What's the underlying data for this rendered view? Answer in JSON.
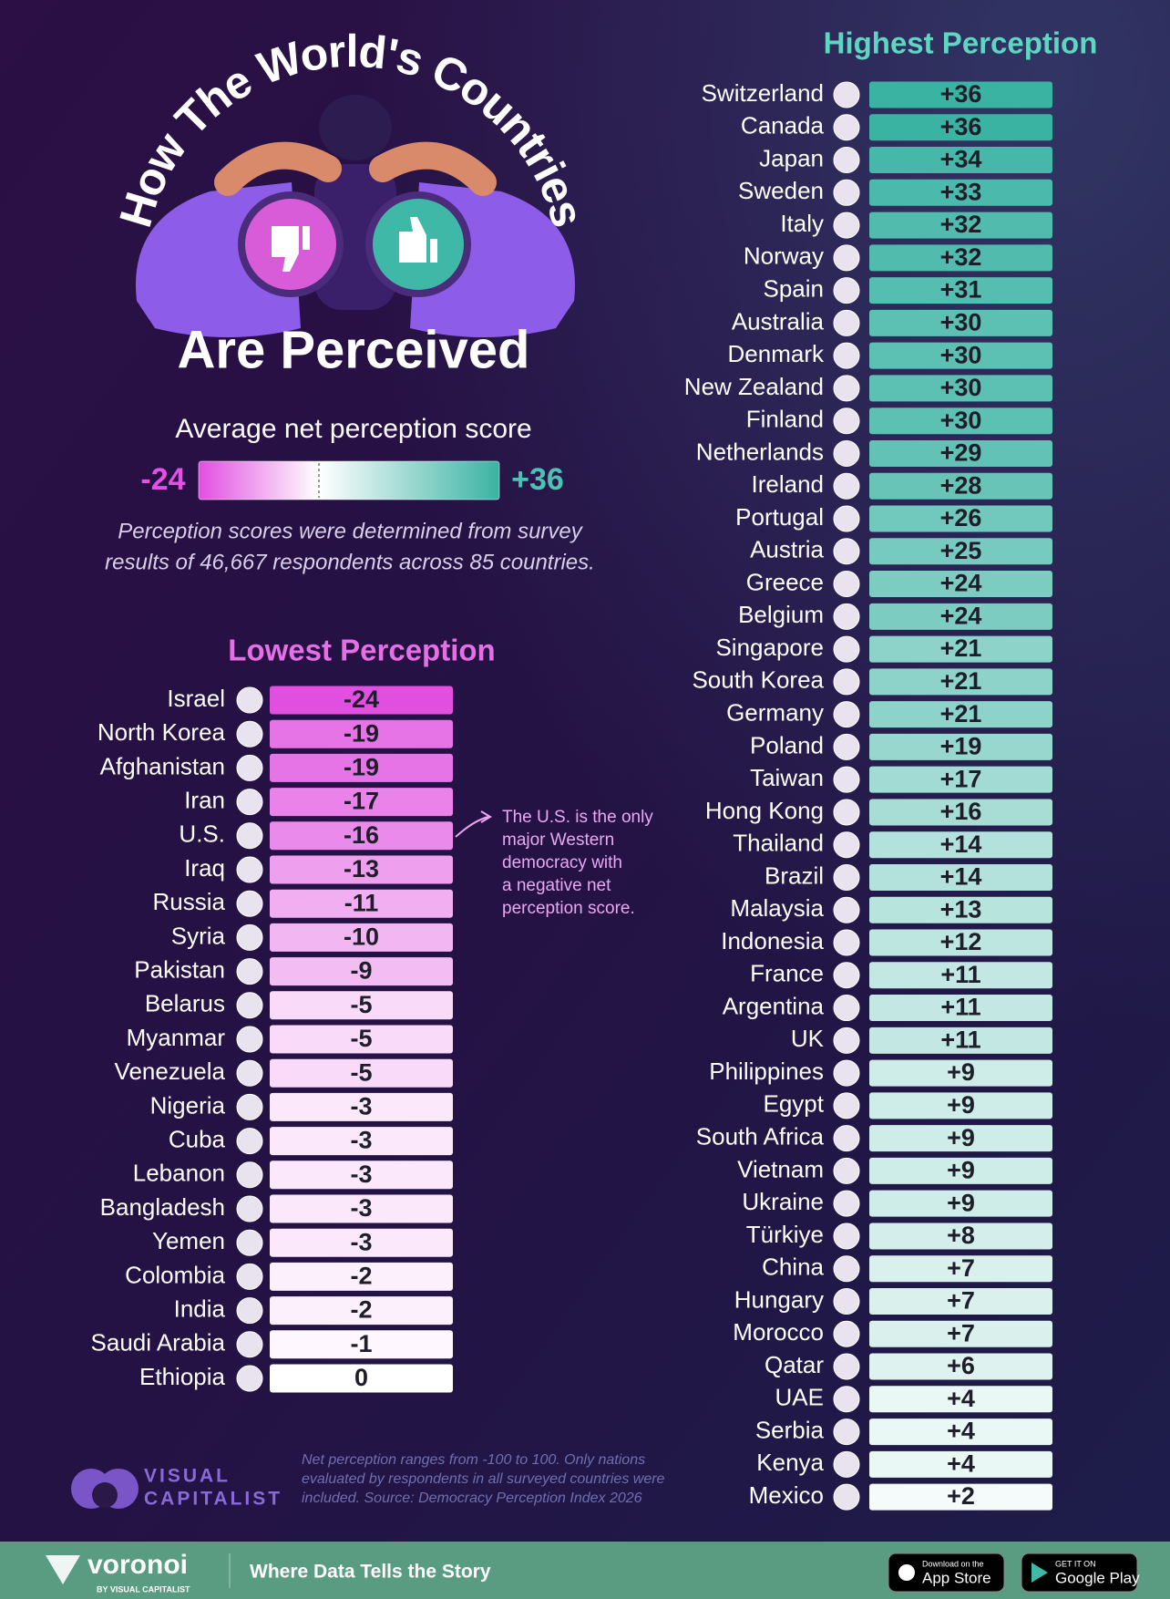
{
  "title_top": "How The World's Countries",
  "title_bottom": "Are Perceived",
  "legend": {
    "title": "Average net perception score",
    "min": -24,
    "max": {
      "value": 36,
      "label": "+36"
    },
    "colors": [
      "#e04fe0",
      "#ffffff",
      "#3bb3a3"
    ]
  },
  "note": [
    "Perception scores were determined from survey",
    "results of 46,667 respondents across 85 countries."
  ],
  "annotation": [
    "The U.S. is the only",
    "major Western",
    "democracy with",
    "a negative net",
    "perception score."
  ],
  "chart_data": [
    {
      "type": "bar",
      "title": "Lowest Perception",
      "color": "#e66fe6",
      "categories": [
        "Israel",
        "North Korea",
        "Afghanistan",
        "Iran",
        "U.S.",
        "Iraq",
        "Russia",
        "Syria",
        "Pakistan",
        "Belarus",
        "Myanmar",
        "Venezuela",
        "Nigeria",
        "Cuba",
        "Lebanon",
        "Bangladesh",
        "Yemen",
        "Colombia",
        "India",
        "Saudi Arabia",
        "Ethiopia"
      ],
      "values": [
        -24,
        -19,
        -19,
        -17,
        -16,
        -13,
        -11,
        -10,
        -9,
        -5,
        -5,
        -5,
        -3,
        -3,
        -3,
        -3,
        -3,
        -2,
        -2,
        -1,
        0
      ]
    },
    {
      "type": "bar",
      "title": "Highest Perception",
      "color": "#5fd6c2",
      "categories": [
        "Switzerland",
        "Canada",
        "Japan",
        "Sweden",
        "Italy",
        "Norway",
        "Spain",
        "Australia",
        "Denmark",
        "New Zealand",
        "Finland",
        "Netherlands",
        "Ireland",
        "Portugal",
        "Austria",
        "Greece",
        "Belgium",
        "Singapore",
        "South Korea",
        "Germany",
        "Poland",
        "Taiwan",
        "Hong Kong",
        "Thailand",
        "Brazil",
        "Malaysia",
        "Indonesia",
        "France",
        "Argentina",
        "UK",
        "Philippines",
        "Egypt",
        "South Africa",
        "Vietnam",
        "Ukraine",
        "Türkiye",
        "China",
        "Hungary",
        "Morocco",
        "Qatar",
        "UAE",
        "Serbia",
        "Kenya",
        "Mexico"
      ],
      "values": [
        36,
        36,
        34,
        33,
        32,
        32,
        31,
        30,
        30,
        30,
        30,
        29,
        28,
        26,
        25,
        24,
        24,
        21,
        21,
        21,
        19,
        17,
        16,
        14,
        14,
        13,
        12,
        11,
        11,
        11,
        9,
        9,
        9,
        9,
        9,
        8,
        7,
        7,
        7,
        6,
        4,
        4,
        4,
        2
      ],
      "value_labels": [
        "+36",
        "+36",
        "+34",
        "+33",
        "+32",
        "+32",
        "+31",
        "+30",
        "+30",
        "+30",
        "+30",
        "+29",
        "+28",
        "+26",
        "+25",
        "+24",
        "+24",
        "+21",
        "+21",
        "+21",
        "+19",
        "+17",
        "+16",
        "+14",
        "+14",
        "+13",
        "+12",
        "+11",
        "+11",
        "+11",
        "+9",
        "+9",
        "+9",
        "+9",
        "+9",
        "+8",
        "+7",
        "+7",
        "+7",
        "+6",
        "+4",
        "+4",
        "+4",
        "+2"
      ]
    }
  ],
  "footnote": [
    "Net perception ranges from -100 to 100. Only nations",
    "evaluated by respondents in all surveyed countries were",
    "included. Source: Democracy Perception Index 2026"
  ],
  "brand": [
    "VISUAL",
    "CAPITALIST"
  ],
  "footer": {
    "logo": "voronoi",
    "byline": "BY VISUAL CAPITALIST",
    "tagline": "Where Data Tells the Story",
    "app_store_small": "Download on the",
    "app_store": "App Store",
    "google_small": "GET IT ON",
    "google": "Google Play"
  }
}
